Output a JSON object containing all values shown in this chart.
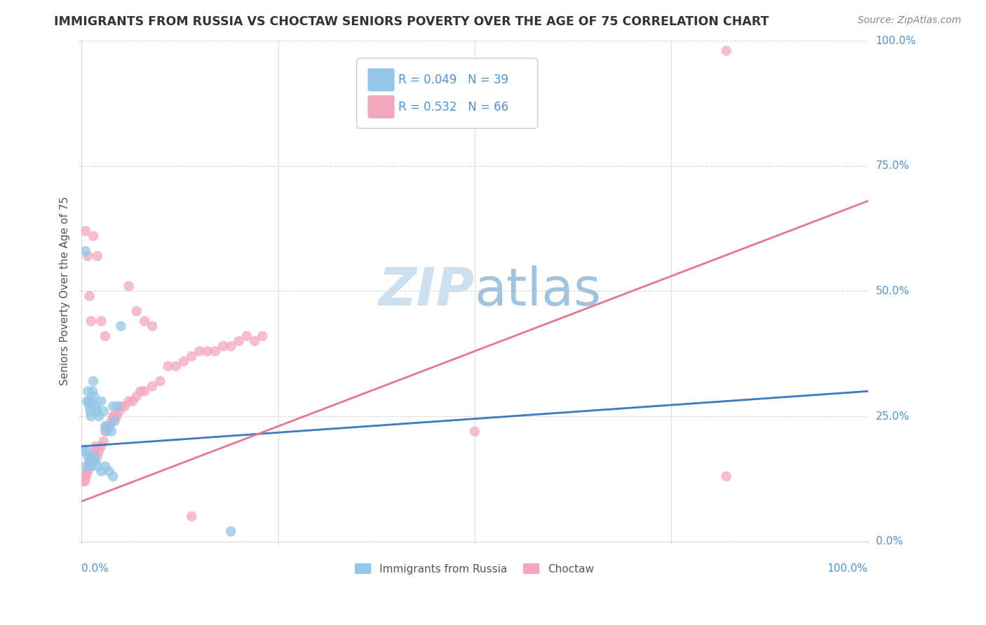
{
  "title": "IMMIGRANTS FROM RUSSIA VS CHOCTAW SENIORS POVERTY OVER THE AGE OF 75 CORRELATION CHART",
  "source": "Source: ZipAtlas.com",
  "ylabel": "Seniors Poverty Over the Age of 75",
  "legend_label1": "Immigrants from Russia",
  "legend_label2": "Choctaw",
  "R1": "0.049",
  "N1": "39",
  "R2": "0.532",
  "N2": "66",
  "blue_scatter_color": "#93c6e8",
  "pink_scatter_color": "#f4a7bc",
  "blue_line_color": "#3d7dbf",
  "pink_line_color": "#e8758f",
  "axis_label_color": "#4d94d4",
  "title_color": "#333333",
  "source_color": "#888888",
  "grid_color": "#d8d8d8",
  "background_color": "#ffffff",
  "watermark_color": "#cce0f0",
  "blue_scatter_x": [
    0.005,
    0.007,
    0.008,
    0.009,
    0.01,
    0.011,
    0.012,
    0.013,
    0.014,
    0.015,
    0.016,
    0.018,
    0.02,
    0.022,
    0.025,
    0.028,
    0.03,
    0.032,
    0.035,
    0.038,
    0.04,
    0.042,
    0.045,
    0.005,
    0.007,
    0.008,
    0.01,
    0.012,
    0.014,
    0.016,
    0.018,
    0.02,
    0.025,
    0.03,
    0.035,
    0.04,
    0.05,
    0.19,
    0.003
  ],
  "blue_scatter_y": [
    0.58,
    0.28,
    0.3,
    0.28,
    0.27,
    0.26,
    0.25,
    0.28,
    0.3,
    0.32,
    0.29,
    0.27,
    0.26,
    0.25,
    0.28,
    0.26,
    0.23,
    0.22,
    0.23,
    0.22,
    0.27,
    0.24,
    0.27,
    0.15,
    0.18,
    0.17,
    0.16,
    0.15,
    0.16,
    0.17,
    0.16,
    0.15,
    0.14,
    0.15,
    0.14,
    0.13,
    0.43,
    0.02,
    0.18
  ],
  "pink_scatter_x": [
    0.003,
    0.004,
    0.005,
    0.006,
    0.007,
    0.008,
    0.009,
    0.01,
    0.011,
    0.012,
    0.013,
    0.014,
    0.015,
    0.016,
    0.017,
    0.018,
    0.02,
    0.022,
    0.025,
    0.028,
    0.03,
    0.032,
    0.035,
    0.038,
    0.04,
    0.042,
    0.045,
    0.048,
    0.05,
    0.055,
    0.06,
    0.065,
    0.07,
    0.075,
    0.08,
    0.09,
    0.1,
    0.11,
    0.12,
    0.13,
    0.14,
    0.15,
    0.16,
    0.17,
    0.18,
    0.19,
    0.2,
    0.21,
    0.22,
    0.23,
    0.005,
    0.008,
    0.01,
    0.012,
    0.015,
    0.02,
    0.025,
    0.03,
    0.06,
    0.07,
    0.08,
    0.09,
    0.82,
    0.82,
    0.5,
    0.14
  ],
  "pink_scatter_y": [
    0.12,
    0.12,
    0.13,
    0.13,
    0.14,
    0.14,
    0.15,
    0.15,
    0.16,
    0.16,
    0.17,
    0.17,
    0.16,
    0.18,
    0.18,
    0.19,
    0.17,
    0.18,
    0.19,
    0.2,
    0.22,
    0.23,
    0.23,
    0.24,
    0.25,
    0.25,
    0.25,
    0.26,
    0.27,
    0.27,
    0.28,
    0.28,
    0.29,
    0.3,
    0.3,
    0.31,
    0.32,
    0.35,
    0.35,
    0.36,
    0.37,
    0.38,
    0.38,
    0.38,
    0.39,
    0.39,
    0.4,
    0.41,
    0.4,
    0.41,
    0.62,
    0.57,
    0.49,
    0.44,
    0.61,
    0.57,
    0.44,
    0.41,
    0.51,
    0.46,
    0.44,
    0.43,
    0.98,
    0.13,
    0.22,
    0.05
  ],
  "blue_line_x0": 0.0,
  "blue_line_x1": 1.0,
  "blue_line_y0": 0.19,
  "blue_line_y1": 0.3,
  "pink_line_x0": 0.0,
  "pink_line_x1": 1.0,
  "pink_line_y0": 0.08,
  "pink_line_y1": 0.68,
  "xlim": [
    0.0,
    1.0
  ],
  "ylim": [
    0.0,
    1.0
  ],
  "ytick_vals": [
    0.0,
    0.25,
    0.5,
    0.75,
    1.0
  ],
  "ytick_labels": [
    "0.0%",
    "25.0%",
    "50.0%",
    "75.0%",
    "100.0%"
  ],
  "xtick_labels_left": "0.0%",
  "xtick_labels_right": "100.0%"
}
